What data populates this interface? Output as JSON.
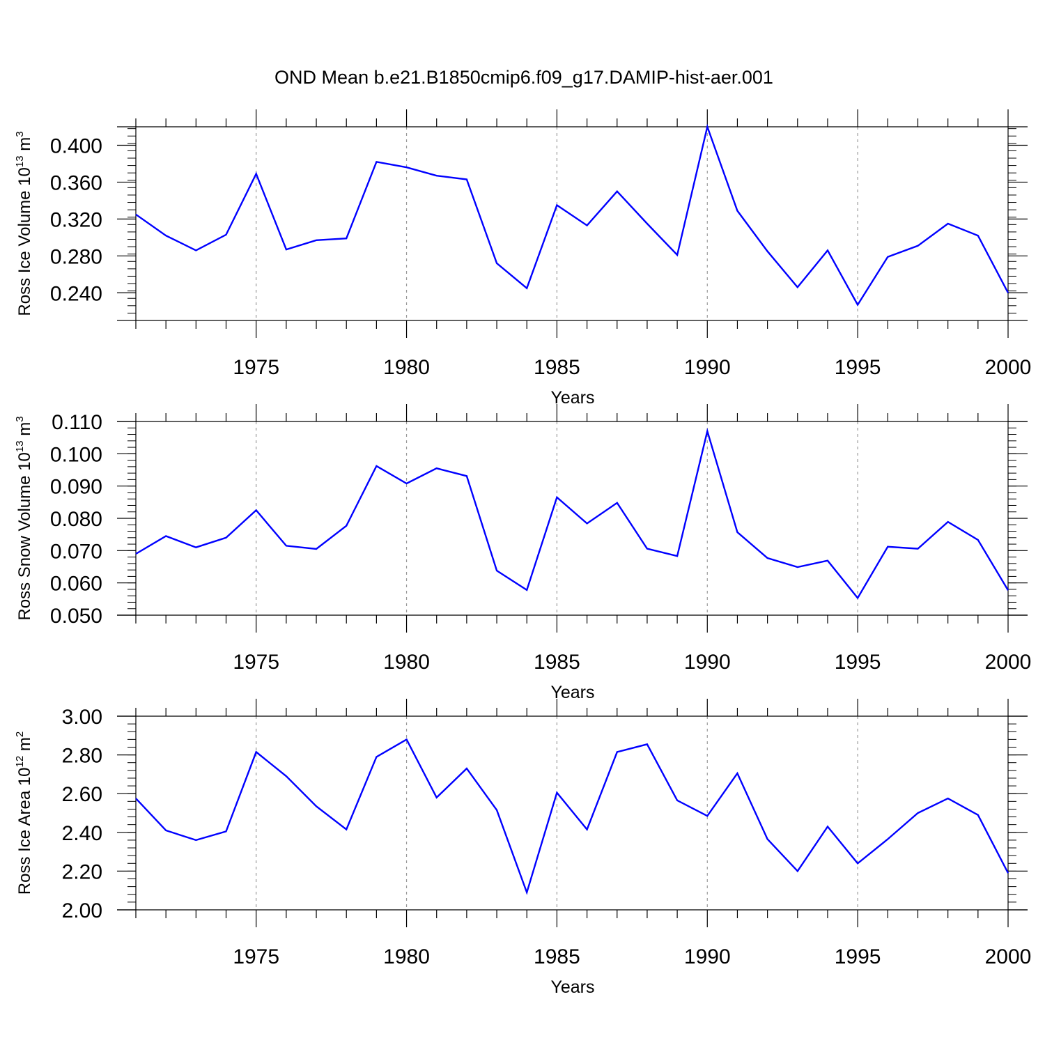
{
  "title": "OND Mean b.e21.B1850cmip6.f09_g17.DAMIP-hist-aer.001",
  "colors": {
    "line": "#0000ff",
    "axes": "#000000",
    "grid": "#999999"
  },
  "chart_data": [
    {
      "type": "line",
      "title": "",
      "xlabel": "Years",
      "ylabel": {
        "text": "Ross Ice Volume 10",
        "exp": "13",
        "unit": " m",
        "unit_exp": "3"
      },
      "xlim": [
        1971,
        2000
      ],
      "ylim": [
        0.21,
        0.42
      ],
      "xticks": [
        1975,
        1980,
        1985,
        1990,
        1995,
        2000
      ],
      "xtick_labels": [
        "1975",
        "1980",
        "1985",
        "1990",
        "1995",
        "2000"
      ],
      "yticks": [
        0.24,
        0.28,
        0.32,
        0.36,
        0.4
      ],
      "ytick_labels": [
        "0.240",
        "0.280",
        "0.320",
        "0.360",
        "0.400"
      ],
      "vertical_grid": true,
      "x": [
        1971,
        1972,
        1973,
        1974,
        1975,
        1976,
        1977,
        1978,
        1979,
        1980,
        1981,
        1982,
        1983,
        1984,
        1985,
        1986,
        1987,
        1988,
        1989,
        1990,
        1991,
        1992,
        1993,
        1994,
        1995,
        1996,
        1997,
        1998,
        1999,
        2000
      ],
      "series": [
        {
          "values": [
            0.325,
            0.302,
            0.286,
            0.303,
            0.369,
            0.287,
            0.297,
            0.299,
            0.382,
            0.376,
            0.367,
            0.363,
            0.272,
            0.245,
            0.335,
            0.313,
            0.35,
            0.315,
            0.281,
            0.42,
            0.329,
            0.285,
            0.246,
            0.286,
            0.227,
            0.279,
            0.291,
            0.315,
            0.302,
            0.24
          ]
        }
      ]
    },
    {
      "type": "line",
      "title": "",
      "xlabel": "Years",
      "ylabel": {
        "text": "Ross Snow Volume 10",
        "exp": "13",
        "unit": " m",
        "unit_exp": "3"
      },
      "xlim": [
        1971,
        2000
      ],
      "ylim": [
        0.05,
        0.11
      ],
      "xticks": [
        1975,
        1980,
        1985,
        1990,
        1995,
        2000
      ],
      "xtick_labels": [
        "1975",
        "1980",
        "1985",
        "1990",
        "1995",
        "2000"
      ],
      "yticks": [
        0.05,
        0.06,
        0.07,
        0.08,
        0.09,
        0.1,
        0.11
      ],
      "ytick_labels": [
        "0.050",
        "0.060",
        "0.070",
        "0.080",
        "0.090",
        "0.100",
        "0.110"
      ],
      "vertical_grid": true,
      "x": [
        1971,
        1972,
        1973,
        1974,
        1975,
        1976,
        1977,
        1978,
        1979,
        1980,
        1981,
        1982,
        1983,
        1984,
        1985,
        1986,
        1987,
        1988,
        1989,
        1990,
        1991,
        1992,
        1993,
        1994,
        1995,
        1996,
        1997,
        1998,
        1999,
        2000
      ],
      "series": [
        {
          "values": [
            0.069,
            0.0745,
            0.071,
            0.074,
            0.0825,
            0.0715,
            0.0705,
            0.0777,
            0.0962,
            0.0908,
            0.0955,
            0.0931,
            0.0638,
            0.0578,
            0.0865,
            0.0784,
            0.0848,
            0.0706,
            0.0683,
            0.107,
            0.0757,
            0.0677,
            0.0649,
            0.0669,
            0.0553,
            0.0712,
            0.0706,
            0.0789,
            0.0733,
            0.0577
          ]
        }
      ]
    },
    {
      "type": "line",
      "title": "",
      "xlabel": "Years",
      "ylabel": {
        "text": "Ross Ice Area 10",
        "exp": "12",
        "unit": " m",
        "unit_exp": "2"
      },
      "xlim": [
        1971,
        2000
      ],
      "ylim": [
        2.0,
        3.0
      ],
      "xticks": [
        1975,
        1980,
        1985,
        1990,
        1995,
        2000
      ],
      "xtick_labels": [
        "1975",
        "1980",
        "1985",
        "1990",
        "1995",
        "2000"
      ],
      "yticks": [
        2.0,
        2.2,
        2.4,
        2.6,
        2.8,
        3.0
      ],
      "ytick_labels": [
        "2.00",
        "2.20",
        "2.40",
        "2.60",
        "2.80",
        "3.00"
      ],
      "vertical_grid": true,
      "x": [
        1971,
        1972,
        1973,
        1974,
        1975,
        1976,
        1977,
        1978,
        1979,
        1980,
        1981,
        1982,
        1983,
        1984,
        1985,
        1986,
        1987,
        1988,
        1989,
        1990,
        1991,
        1992,
        1993,
        1994,
        1995,
        1996,
        1997,
        1998,
        1999,
        2000
      ],
      "series": [
        {
          "values": [
            2.575,
            2.41,
            2.36,
            2.405,
            2.815,
            2.69,
            2.535,
            2.415,
            2.79,
            2.88,
            2.58,
            2.73,
            2.515,
            2.09,
            2.605,
            2.415,
            2.815,
            2.855,
            2.565,
            2.485,
            2.705,
            2.365,
            2.2,
            2.43,
            2.24,
            2.365,
            2.5,
            2.575,
            2.49,
            2.19
          ]
        }
      ]
    }
  ]
}
